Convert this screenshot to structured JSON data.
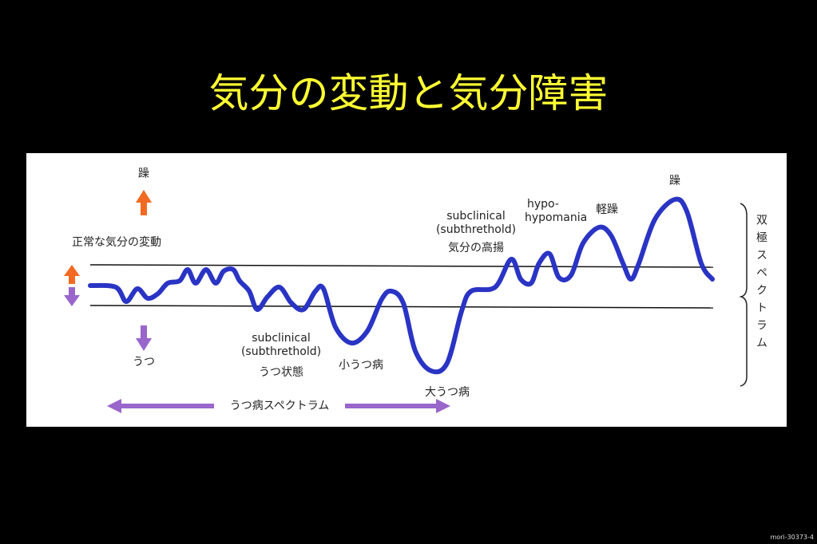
{
  "title": "気分の変動と気分障害",
  "diagram": {
    "labels": [
      "躁",
      "正常な気分の変動",
      "うつ",
      "subclinical",
      "(subthrethold)",
      "うつ状態",
      "小うつ病",
      "大うつ病",
      "subclinical",
      "(subthrethold)",
      "気分の高揚",
      "hypo-",
      "hypomania",
      "軽躁",
      "躁",
      "うつ病スペクトラム",
      "双極スペクトラム"
    ]
  },
  "footer": "mori-30373-4"
}
